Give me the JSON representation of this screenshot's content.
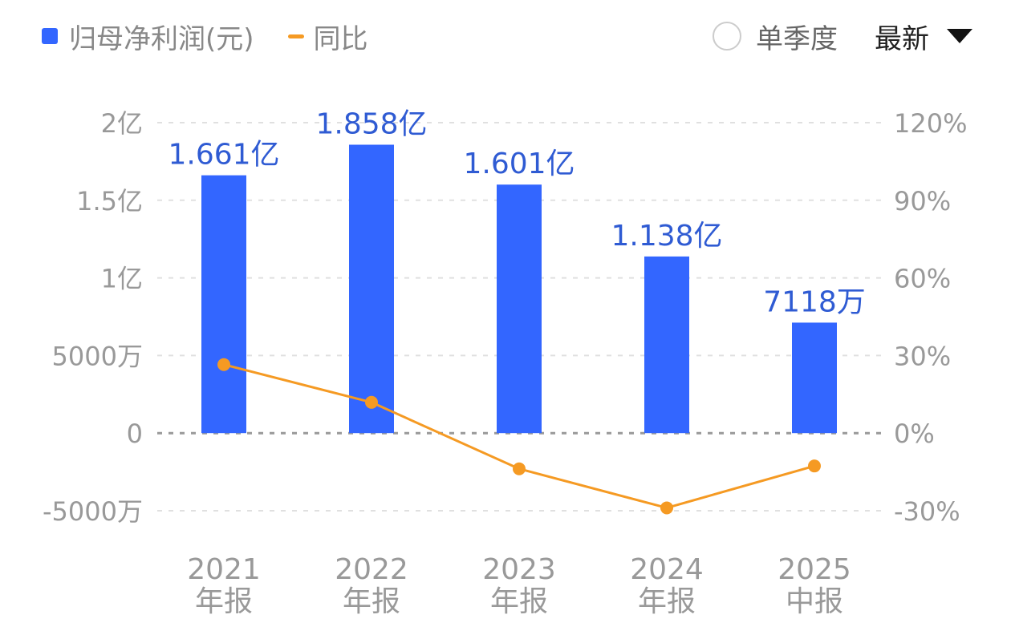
{
  "legend": {
    "bar_label": "归母净利润(元)",
    "line_label": "同比"
  },
  "controls": {
    "quarter_label": "单季度",
    "dropdown_value": "最新"
  },
  "colors": {
    "bar": "#3366ff",
    "line": "#f59a23",
    "bar_label": "#2f5bd3",
    "axis_text": "#999999",
    "grid": "#e0e0e0",
    "zero_line": "#999999"
  },
  "chart_data": {
    "type": "bar",
    "categories": [
      "2021\n年报",
      "2022\n年报",
      "2023\n年报",
      "2024\n年报",
      "2025\n中报"
    ],
    "series": [
      {
        "name": "归母净利润(元)",
        "type": "bar",
        "axis": "left",
        "values": [
          166100000,
          185800000,
          160100000,
          113800000,
          71180000
        ],
        "labels": [
          "1.661亿",
          "1.858亿",
          "1.601亿",
          "1.138亿",
          "7118万"
        ]
      },
      {
        "name": "同比",
        "type": "line",
        "axis": "right",
        "values": [
          26.5,
          11.9,
          -13.8,
          -28.9,
          -12.7
        ]
      }
    ],
    "y_left": {
      "ticks": [
        -50000000,
        0,
        50000000,
        100000000,
        150000000,
        200000000
      ],
      "tick_labels": [
        "-5000万",
        "0",
        "5000万",
        "1亿",
        "1.5亿",
        "2亿"
      ],
      "range": [
        -50000000,
        200000000
      ]
    },
    "y_right": {
      "ticks": [
        -30,
        0,
        30,
        60,
        90,
        120
      ],
      "tick_labels": [
        "-30%",
        "0%",
        "30%",
        "60%",
        "90%",
        "120%"
      ],
      "range": [
        -30,
        120
      ]
    },
    "grid": true,
    "legend_position": "top-left"
  }
}
